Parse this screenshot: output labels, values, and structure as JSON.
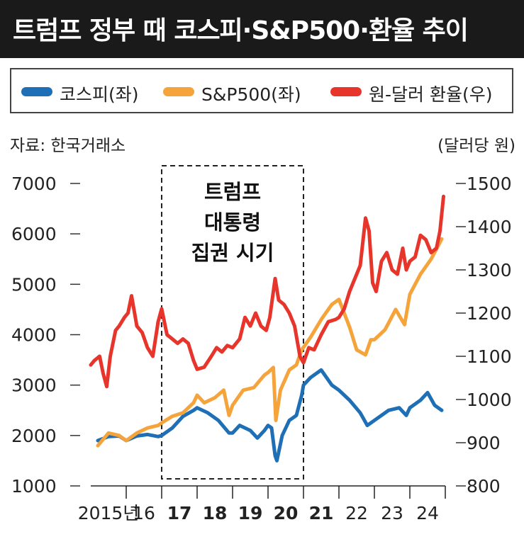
{
  "header": {
    "title": "트럼프 정부 때 코스피·S&P500·환율 추이"
  },
  "source": "자료: 한국거래소",
  "chart_data": {
    "type": "line",
    "legend": [
      "코스피(좌)",
      "S&P500(좌)",
      "원-달러 환율(우)"
    ],
    "y_left": {
      "ylim": [
        1000,
        7000
      ],
      "ticks": [
        "1000",
        "2000",
        "3000",
        "4000",
        "5000",
        "6000",
        "7000"
      ]
    },
    "y_right": {
      "label": "(달러당 원)",
      "ylim": [
        800,
        1500
      ],
      "ticks": [
        "800",
        "900",
        "1000",
        "1100",
        "1200",
        "1300",
        "1400",
        "1500"
      ]
    },
    "x_ticks": [
      {
        "label": "2015년",
        "year": 2015,
        "bold": false
      },
      {
        "label": "16",
        "year": 2016,
        "bold": false
      },
      {
        "label": "17",
        "year": 2017,
        "bold": true
      },
      {
        "label": "18",
        "year": 2018,
        "bold": true
      },
      {
        "label": "19",
        "year": 2019,
        "bold": true
      },
      {
        "label": "20",
        "year": 2020,
        "bold": true
      },
      {
        "label": "21",
        "year": 2021,
        "bold": true
      },
      {
        "label": "22",
        "year": 2022,
        "bold": false
      },
      {
        "label": "23",
        "year": 2023,
        "bold": false
      },
      {
        "label": "24",
        "year": 2024,
        "bold": false
      }
    ],
    "highlight": {
      "from": 2017,
      "to": 2021,
      "label_lines": [
        "트럼프",
        "대통령",
        "집권 시기"
      ]
    },
    "series": [
      {
        "name": "코스피(좌)",
        "axis": "left",
        "color": "#1e6fb5",
        "points": [
          [
            2015.2,
            1900
          ],
          [
            2015.5,
            1980
          ],
          [
            2015.8,
            1990
          ],
          [
            2016.0,
            1900
          ],
          [
            2016.3,
            1990
          ],
          [
            2016.6,
            2020
          ],
          [
            2016.9,
            1980
          ],
          [
            2017.0,
            2000
          ],
          [
            2017.3,
            2150
          ],
          [
            2017.6,
            2380
          ],
          [
            2017.9,
            2500
          ],
          [
            2018.0,
            2550
          ],
          [
            2018.3,
            2450
          ],
          [
            2018.6,
            2300
          ],
          [
            2018.9,
            2050
          ],
          [
            2019.0,
            2050
          ],
          [
            2019.2,
            2200
          ],
          [
            2019.5,
            2100
          ],
          [
            2019.7,
            1950
          ],
          [
            2019.9,
            2100
          ],
          [
            2020.0,
            2200
          ],
          [
            2020.1,
            2150
          ],
          [
            2020.2,
            1600
          ],
          [
            2020.25,
            1500
          ],
          [
            2020.4,
            2000
          ],
          [
            2020.6,
            2300
          ],
          [
            2020.8,
            2400
          ],
          [
            2020.95,
            2800
          ],
          [
            2021.0,
            3000
          ],
          [
            2021.2,
            3150
          ],
          [
            2021.5,
            3300
          ],
          [
            2021.8,
            3000
          ],
          [
            2022.0,
            2900
          ],
          [
            2022.3,
            2700
          ],
          [
            2022.6,
            2450
          ],
          [
            2022.8,
            2200
          ],
          [
            2023.0,
            2300
          ],
          [
            2023.4,
            2500
          ],
          [
            2023.7,
            2550
          ],
          [
            2023.9,
            2400
          ],
          [
            2024.0,
            2550
          ],
          [
            2024.3,
            2700
          ],
          [
            2024.5,
            2850
          ],
          [
            2024.7,
            2600
          ],
          [
            2024.9,
            2500
          ]
        ]
      },
      {
        "name": "S&P500(좌)",
        "axis": "left",
        "color": "#f5a43c",
        "points": [
          [
            2015.2,
            1800
          ],
          [
            2015.5,
            2050
          ],
          [
            2015.8,
            2000
          ],
          [
            2016.0,
            1900
          ],
          [
            2016.3,
            2050
          ],
          [
            2016.6,
            2150
          ],
          [
            2016.9,
            2200
          ],
          [
            2017.0,
            2250
          ],
          [
            2017.3,
            2380
          ],
          [
            2017.6,
            2450
          ],
          [
            2017.9,
            2650
          ],
          [
            2018.0,
            2800
          ],
          [
            2018.2,
            2650
          ],
          [
            2018.5,
            2750
          ],
          [
            2018.75,
            2900
          ],
          [
            2018.9,
            2400
          ],
          [
            2019.0,
            2600
          ],
          [
            2019.3,
            2900
          ],
          [
            2019.6,
            2950
          ],
          [
            2019.9,
            3200
          ],
          [
            2020.0,
            3250
          ],
          [
            2020.15,
            3350
          ],
          [
            2020.22,
            2300
          ],
          [
            2020.35,
            2900
          ],
          [
            2020.6,
            3300
          ],
          [
            2020.8,
            3400
          ],
          [
            2020.95,
            3700
          ],
          [
            2021.2,
            3950
          ],
          [
            2021.5,
            4300
          ],
          [
            2021.8,
            4600
          ],
          [
            2022.0,
            4700
          ],
          [
            2022.3,
            4150
          ],
          [
            2022.5,
            3700
          ],
          [
            2022.75,
            3600
          ],
          [
            2022.9,
            3900
          ],
          [
            2023.0,
            3900
          ],
          [
            2023.3,
            4100
          ],
          [
            2023.6,
            4500
          ],
          [
            2023.85,
            4200
          ],
          [
            2024.0,
            4800
          ],
          [
            2024.3,
            5200
          ],
          [
            2024.6,
            5500
          ],
          [
            2024.9,
            5900
          ]
        ]
      },
      {
        "name": "원-달러 환율(우)",
        "axis": "right",
        "color": "#e8352b",
        "points": [
          [
            2015.0,
            1080
          ],
          [
            2015.1,
            1090
          ],
          [
            2015.25,
            1100
          ],
          [
            2015.35,
            1060
          ],
          [
            2015.45,
            1030
          ],
          [
            2015.55,
            1100
          ],
          [
            2015.7,
            1160
          ],
          [
            2015.8,
            1170
          ],
          [
            2015.95,
            1190
          ],
          [
            2016.05,
            1200
          ],
          [
            2016.15,
            1240
          ],
          [
            2016.3,
            1170
          ],
          [
            2016.45,
            1155
          ],
          [
            2016.6,
            1120
          ],
          [
            2016.75,
            1100
          ],
          [
            2016.9,
            1180
          ],
          [
            2017.0,
            1210
          ],
          [
            2017.15,
            1150
          ],
          [
            2017.3,
            1140
          ],
          [
            2017.45,
            1130
          ],
          [
            2017.6,
            1140
          ],
          [
            2017.75,
            1130
          ],
          [
            2017.9,
            1090
          ],
          [
            2018.0,
            1070
          ],
          [
            2018.2,
            1075
          ],
          [
            2018.4,
            1100
          ],
          [
            2018.55,
            1120
          ],
          [
            2018.7,
            1110
          ],
          [
            2018.85,
            1125
          ],
          [
            2019.0,
            1120
          ],
          [
            2019.2,
            1140
          ],
          [
            2019.35,
            1190
          ],
          [
            2019.5,
            1170
          ],
          [
            2019.65,
            1200
          ],
          [
            2019.8,
            1170
          ],
          [
            2019.95,
            1160
          ],
          [
            2020.05,
            1190
          ],
          [
            2020.2,
            1280
          ],
          [
            2020.3,
            1230
          ],
          [
            2020.45,
            1220
          ],
          [
            2020.6,
            1200
          ],
          [
            2020.75,
            1170
          ],
          [
            2020.9,
            1100
          ],
          [
            2021.0,
            1085
          ],
          [
            2021.15,
            1120
          ],
          [
            2021.3,
            1115
          ],
          [
            2021.5,
            1150
          ],
          [
            2021.7,
            1180
          ],
          [
            2021.9,
            1185
          ],
          [
            2022.0,
            1190
          ],
          [
            2022.15,
            1210
          ],
          [
            2022.3,
            1250
          ],
          [
            2022.45,
            1280
          ],
          [
            2022.6,
            1310
          ],
          [
            2022.75,
            1420
          ],
          [
            2022.85,
            1390
          ],
          [
            2022.95,
            1270
          ],
          [
            2023.05,
            1250
          ],
          [
            2023.2,
            1320
          ],
          [
            2023.35,
            1340
          ],
          [
            2023.5,
            1300
          ],
          [
            2023.65,
            1290
          ],
          [
            2023.8,
            1350
          ],
          [
            2023.9,
            1300
          ],
          [
            2024.0,
            1320
          ],
          [
            2024.15,
            1330
          ],
          [
            2024.3,
            1380
          ],
          [
            2024.45,
            1370
          ],
          [
            2024.6,
            1340
          ],
          [
            2024.75,
            1350
          ],
          [
            2024.85,
            1390
          ],
          [
            2024.95,
            1470
          ]
        ]
      }
    ]
  }
}
